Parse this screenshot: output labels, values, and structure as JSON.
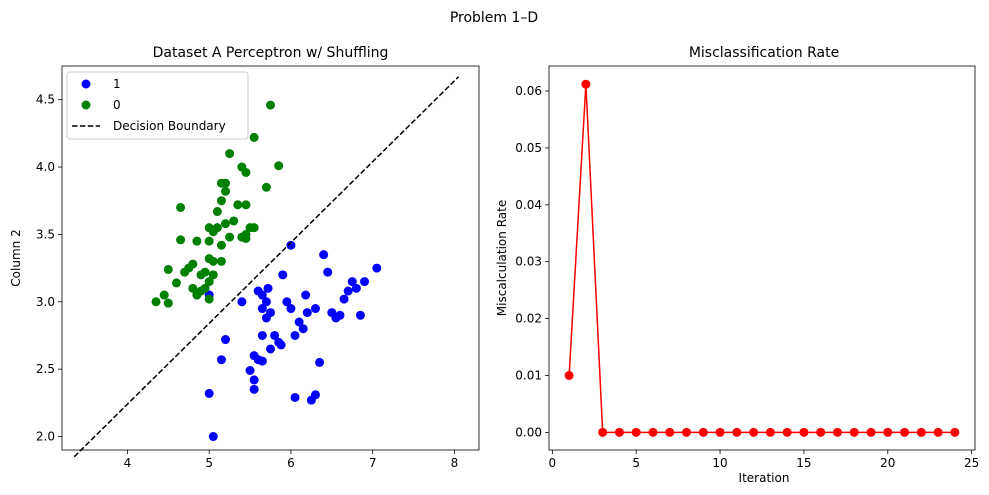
{
  "figure": {
    "title": "Problem 1–D"
  },
  "chart_data": [
    {
      "type": "scatter",
      "title": "Dataset A Perceptron w/ Shuffling",
      "xlabel": "",
      "ylabel": "Column 2",
      "xlim": [
        3.2,
        8.3
      ],
      "ylim": [
        1.9,
        4.75
      ],
      "xticks": [
        4,
        5,
        6,
        7,
        8
      ],
      "yticks": [
        2.0,
        2.5,
        3.0,
        3.5,
        4.0,
        4.5
      ],
      "legend": {
        "placement": "top-left",
        "entries": [
          "1",
          "0",
          "Decision Boundary"
        ]
      },
      "colors": {
        "series_1": "#0000ff",
        "series_0": "#008000",
        "boundary": "#000000"
      },
      "series": [
        {
          "name": "1",
          "points": [
            [
              5.05,
              2.0
            ],
            [
              5.0,
              2.32
            ],
            [
              5.15,
              2.57
            ],
            [
              5.55,
              2.35
            ],
            [
              5.55,
              2.42
            ],
            [
              5.5,
              2.49
            ],
            [
              5.55,
              2.6
            ],
            [
              5.6,
              2.57
            ],
            [
              5.2,
              2.72
            ],
            [
              5.65,
              2.56
            ],
            [
              5.65,
              2.75
            ],
            [
              5.7,
              2.88
            ],
            [
              5.75,
              2.65
            ],
            [
              5.8,
              2.75
            ],
            [
              5.85,
              2.7
            ],
            [
              5.88,
              2.68
            ],
            [
              5.4,
              3.0
            ],
            [
              5.6,
              3.08
            ],
            [
              5.65,
              3.05
            ],
            [
              5.7,
              3.0
            ],
            [
              5.72,
              3.1
            ],
            [
              5.75,
              2.92
            ],
            [
              5.65,
              2.95
            ],
            [
              5.9,
              3.2
            ],
            [
              5.95,
              3.0
            ],
            [
              6.0,
              2.95
            ],
            [
              6.05,
              2.75
            ],
            [
              6.1,
              2.85
            ],
            [
              6.15,
              2.8
            ],
            [
              6.2,
              2.92
            ],
            [
              6.18,
              3.05
            ],
            [
              6.3,
              2.95
            ],
            [
              6.0,
              3.42
            ],
            [
              6.05,
              2.29
            ],
            [
              6.25,
              2.27
            ],
            [
              6.3,
              2.31
            ],
            [
              6.35,
              2.55
            ],
            [
              6.4,
              3.35
            ],
            [
              6.45,
              3.22
            ],
            [
              6.5,
              2.92
            ],
            [
              6.55,
              2.88
            ],
            [
              6.6,
              2.9
            ],
            [
              6.65,
              3.02
            ],
            [
              6.7,
              3.08
            ],
            [
              6.75,
              3.15
            ],
            [
              6.8,
              3.1
            ],
            [
              6.9,
              3.15
            ],
            [
              6.85,
              2.9
            ],
            [
              7.05,
              3.25
            ],
            [
              5.0,
              3.05
            ]
          ]
        },
        {
          "name": "0",
          "points": [
            [
              4.35,
              3.0
            ],
            [
              4.45,
              3.05
            ],
            [
              4.5,
              2.99
            ],
            [
              4.5,
              3.24
            ],
            [
              4.6,
              3.14
            ],
            [
              4.65,
              3.46
            ],
            [
              4.7,
              3.22
            ],
            [
              4.75,
              3.25
            ],
            [
              4.8,
              3.28
            ],
            [
              4.8,
              3.1
            ],
            [
              4.85,
              3.05
            ],
            [
              4.9,
              3.2
            ],
            [
              4.95,
              3.1
            ],
            [
              5.0,
              3.02
            ],
            [
              5.0,
              3.15
            ],
            [
              4.9,
              3.08
            ],
            [
              5.05,
              3.2
            ],
            [
              5.0,
              3.32
            ],
            [
              5.0,
              3.45
            ],
            [
              5.05,
              3.52
            ],
            [
              5.0,
              3.55
            ],
            [
              5.1,
              3.55
            ],
            [
              5.15,
              3.3
            ],
            [
              5.15,
              3.42
            ],
            [
              5.2,
              3.58
            ],
            [
              5.25,
              3.48
            ],
            [
              5.3,
              3.6
            ],
            [
              5.4,
              3.48
            ],
            [
              5.45,
              3.47
            ],
            [
              5.45,
              3.5
            ],
            [
              5.5,
              3.55
            ],
            [
              5.55,
              3.55
            ],
            [
              5.1,
              3.67
            ],
            [
              5.15,
              3.75
            ],
            [
              5.2,
              3.82
            ],
            [
              5.2,
              3.88
            ],
            [
              5.15,
              3.88
            ],
            [
              5.35,
              3.72
            ],
            [
              5.45,
              3.72
            ],
            [
              5.4,
              4.0
            ],
            [
              5.45,
              3.96
            ],
            [
              5.25,
              4.1
            ],
            [
              5.55,
              4.22
            ],
            [
              5.7,
              3.85
            ],
            [
              5.85,
              4.01
            ],
            [
              5.75,
              4.46
            ],
            [
              4.65,
              3.7
            ],
            [
              4.85,
              3.45
            ],
            [
              5.05,
              3.3
            ],
            [
              4.95,
              3.22
            ]
          ]
        }
      ],
      "boundary": {
        "name": "Decision Boundary",
        "points": [
          [
            3.35,
            1.85
          ],
          [
            8.05,
            4.67
          ]
        ]
      }
    },
    {
      "type": "line",
      "title": "Misclassification Rate",
      "xlabel": "Iteration",
      "ylabel": "Miscalculation Rate",
      "xlim": [
        -0.2,
        25.2
      ],
      "ylim": [
        -0.0031,
        0.0644
      ],
      "xticks": [
        0,
        5,
        10,
        15,
        20,
        25
      ],
      "yticks": [
        0.0,
        0.01,
        0.02,
        0.03,
        0.04,
        0.05,
        0.06
      ],
      "ytick_labels": [
        "0.00",
        "0.01",
        "0.02",
        "0.03",
        "0.04",
        "0.05",
        "0.06"
      ],
      "grid": false,
      "colors": {
        "line": "#ff0000"
      },
      "x": [
        1,
        2,
        3,
        4,
        5,
        6,
        7,
        8,
        9,
        10,
        11,
        12,
        13,
        14,
        15,
        16,
        17,
        18,
        19,
        20,
        21,
        22,
        23,
        24
      ],
      "values": [
        0.01,
        0.0612,
        0,
        0,
        0,
        0,
        0,
        0,
        0,
        0,
        0,
        0,
        0,
        0,
        0,
        0,
        0,
        0,
        0,
        0,
        0,
        0,
        0,
        0
      ]
    }
  ]
}
